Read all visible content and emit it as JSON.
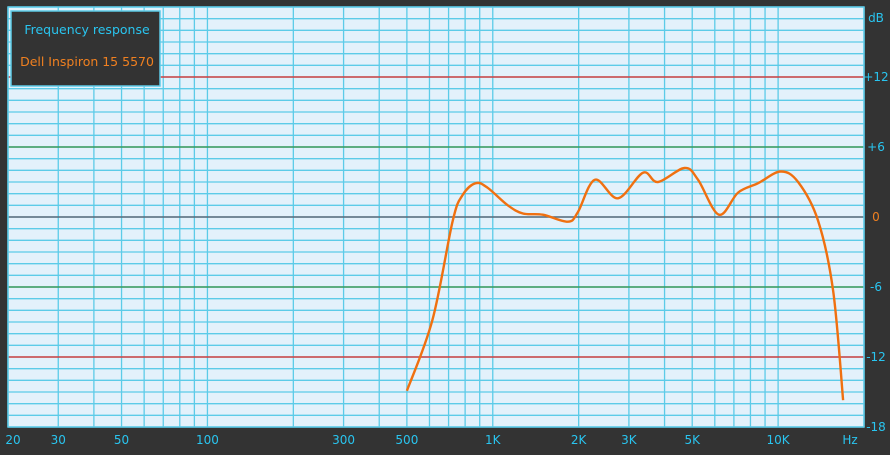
{
  "chart_data": {
    "type": "line",
    "legend": {
      "title": "Frequency response",
      "placement": "top-left"
    },
    "x_scale": "log",
    "xlim": [
      20,
      20000
    ],
    "ylim": [
      -18,
      18
    ],
    "grid": true,
    "xlabel": "Hz",
    "ylabel": "dB",
    "x_ticks": [
      {
        "v": 20,
        "label": "20"
      },
      {
        "v": 30,
        "label": "30"
      },
      {
        "v": 50,
        "label": "50"
      },
      {
        "v": 100,
        "label": "100"
      },
      {
        "v": 300,
        "label": "300"
      },
      {
        "v": 500,
        "label": "500"
      },
      {
        "v": 1000,
        "label": "1K"
      },
      {
        "v": 2000,
        "label": "2K"
      },
      {
        "v": 3000,
        "label": "3K"
      },
      {
        "v": 5000,
        "label": "5K"
      },
      {
        "v": 10000,
        "label": "10K"
      }
    ],
    "y_ticks": [
      {
        "v": 12,
        "label": "+12"
      },
      {
        "v": 6,
        "label": "+6"
      },
      {
        "v": 0,
        "label": "0"
      },
      {
        "v": -6,
        "label": "-6"
      },
      {
        "v": -12,
        "label": "-12"
      },
      {
        "v": -18,
        "label": "-18"
      }
    ],
    "reference_lines": [
      {
        "v": 12,
        "color": "#d04040"
      },
      {
        "v": 6,
        "color": "#3a9a5a"
      },
      {
        "v": 0,
        "color": "#5a6a78"
      },
      {
        "v": -6,
        "color": "#3a9a5a"
      },
      {
        "v": -12,
        "color": "#d04040"
      }
    ],
    "series": [
      {
        "name": "Dell Inspiron 15 5570",
        "color": "#f07010",
        "x": [
          500,
          615,
          724,
          785,
          872,
          960,
          1129,
          1275,
          1497,
          1832,
          1986,
          2280,
          2747,
          3360,
          3790,
          4700,
          5240,
          6200,
          7244,
          8511,
          10200,
          11750,
          13800,
          15590,
          16900
        ],
        "y": [
          -14.9,
          -8.8,
          -0.3,
          1.9,
          2.9,
          2.5,
          1.0,
          0.3,
          0.2,
          -0.4,
          0.4,
          3.2,
          1.6,
          3.8,
          3.0,
          4.2,
          3.2,
          0.2,
          2.1,
          2.9,
          3.9,
          3.0,
          -0.3,
          -6.3,
          -15.7
        ]
      }
    ],
    "colors": {
      "background": "#333333",
      "plot_bg": "#e3f1fb",
      "grid": "#5ccbe8",
      "tick_text": "#29c5f0",
      "zero_label": "#f08020"
    }
  }
}
